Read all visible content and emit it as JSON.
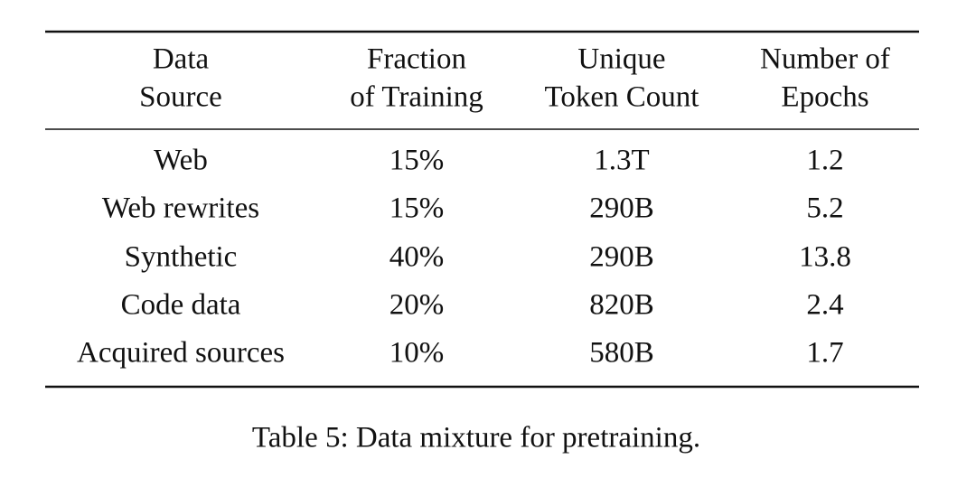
{
  "table": {
    "header": [
      [
        "Data",
        "Source"
      ],
      [
        "Fraction",
        "of Training"
      ],
      [
        "Unique",
        "Token Count"
      ],
      [
        "Number of",
        "Epochs"
      ]
    ],
    "rows": [
      [
        "Web",
        "15%",
        "1.3T",
        "1.2"
      ],
      [
        "Web rewrites",
        "15%",
        "290B",
        "5.2"
      ],
      [
        "Synthetic",
        "40%",
        "290B",
        "13.8"
      ],
      [
        "Code data",
        "20%",
        "820B",
        "2.4"
      ],
      [
        "Acquired sources",
        "10%",
        "580B",
        "1.7"
      ]
    ]
  },
  "caption": "Table 5: Data mixture for pretraining."
}
